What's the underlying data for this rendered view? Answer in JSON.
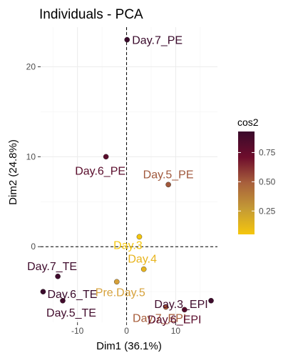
{
  "chart_data": {
    "type": "scatter",
    "title": "Individuals - PCA",
    "xlabel": "Dim1 (36.1%)",
    "ylabel": "Dim2 (24.8%)",
    "xlim": [
      -17.5,
      18.5
    ],
    "ylim": [
      -8.4,
      24.4
    ],
    "x_ticks": [
      -10,
      0,
      10
    ],
    "y_ticks": [
      0,
      10,
      20
    ],
    "reference_lines": {
      "x": 0,
      "y": 0,
      "style": "dashed"
    },
    "grid": true,
    "legend": {
      "title": "cos2",
      "placement": "right",
      "type": "colorbar",
      "range": [
        0.05,
        0.93
      ],
      "ticks": [
        0.25,
        0.5,
        0.75
      ],
      "tick_labels": [
        "0.25",
        "0.50",
        "0.75"
      ],
      "colors": [
        "#f5c60d",
        "#c49a35",
        "#a8603c",
        "#6e0d2c",
        "#3a0a2b"
      ]
    },
    "points": [
      {
        "label": "Day.7_PE",
        "x": 0.1,
        "y": 23.0,
        "cos2": 0.93,
        "color": "#3a0a2b"
      },
      {
        "label": "Day.6_PE",
        "x": -4.2,
        "y": 10.0,
        "cos2": 0.85,
        "color": "#5a0d2c"
      },
      {
        "label": "Day.5_PE",
        "x": 8.5,
        "y": 6.9,
        "cos2": 0.55,
        "color": "#a0583c"
      },
      {
        "label": "Day.3",
        "x": 2.6,
        "y": 1.1,
        "cos2": 0.06,
        "color": "#f5c60d"
      },
      {
        "label": "Day.4",
        "x": 3.5,
        "y": -2.5,
        "cos2": 0.12,
        "color": "#e8b41d"
      },
      {
        "label": "Day.7_TE",
        "x": -14.0,
        "y": -3.3,
        "cos2": 0.9,
        "color": "#3f0b2c"
      },
      {
        "label": "Day.6_TE",
        "x": -17.0,
        "y": -5.0,
        "cos2": 0.92,
        "color": "#3a0a2b"
      },
      {
        "label": "Day.5_TE",
        "x": -13.0,
        "y": -6.0,
        "cos2": 0.88,
        "color": "#420b2c"
      },
      {
        "label": "Pre.Day.5",
        "x": -2.0,
        "y": -3.9,
        "cos2": 0.3,
        "color": "#d6a13a"
      },
      {
        "label": "Day.7_EPI",
        "x": 8.0,
        "y": -6.7,
        "cos2": 0.5,
        "color": "#a65b38"
      },
      {
        "label": "Day.3_EPI",
        "x": 17.2,
        "y": -6.0,
        "cos2": 0.9,
        "color": "#3f0b2c"
      },
      {
        "label": "Day.6_EPI",
        "x": 11.8,
        "y": -7.0,
        "cos2": 0.78,
        "color": "#5a0d2c"
      }
    ]
  }
}
